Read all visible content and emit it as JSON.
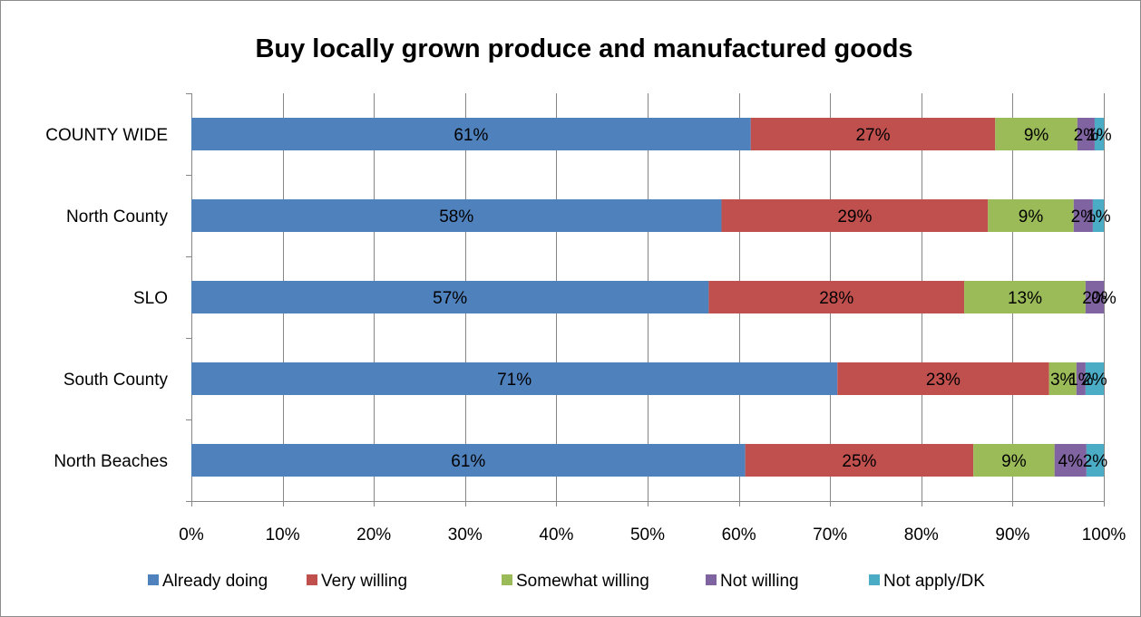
{
  "chart_data": {
    "type": "bar",
    "orientation": "horizontal",
    "stacked": "percent",
    "title": "Buy locally grown produce and manufactured goods",
    "categories": [
      "COUNTY WIDE",
      "North County",
      "SLO",
      "South County",
      "North Beaches"
    ],
    "x_ticks": [
      "0%",
      "10%",
      "20%",
      "30%",
      "40%",
      "50%",
      "60%",
      "70%",
      "80%",
      "90%",
      "100%"
    ],
    "xlim": [
      0,
      100
    ],
    "grid": true,
    "legend_position": "bottom",
    "series": [
      {
        "name": "Already doing",
        "color": "#4F81BD",
        "values": [
          61.3,
          58.1,
          56.7,
          70.8,
          60.7
        ],
        "labels": [
          "61%",
          "58%",
          "57%",
          "71%",
          "61%"
        ]
      },
      {
        "name": "Very willing",
        "color": "#C0504D",
        "values": [
          26.8,
          29.2,
          28.0,
          23.2,
          25.0
        ],
        "labels": [
          "27%",
          "29%",
          "28%",
          "23%",
          "25%"
        ]
      },
      {
        "name": "Somewhat willing",
        "color": "#9BBB59",
        "values": [
          9.0,
          9.4,
          13.3,
          3.0,
          8.9
        ],
        "labels": [
          "9%",
          "9%",
          "13%",
          "3%",
          "9%"
        ]
      },
      {
        "name": "Not willing",
        "color": "#8064A2",
        "values": [
          1.9,
          2.1,
          2.0,
          1.0,
          3.5
        ],
        "labels": [
          "2%",
          "2%",
          "2%",
          "1%",
          "4%"
        ]
      },
      {
        "name": "Not apply/DK",
        "color": "#4BACC6",
        "values": [
          1.0,
          1.2,
          0.0,
          2.0,
          1.9
        ],
        "labels": [
          "1%",
          "1%",
          "0%",
          "2%",
          "2%"
        ]
      }
    ]
  }
}
